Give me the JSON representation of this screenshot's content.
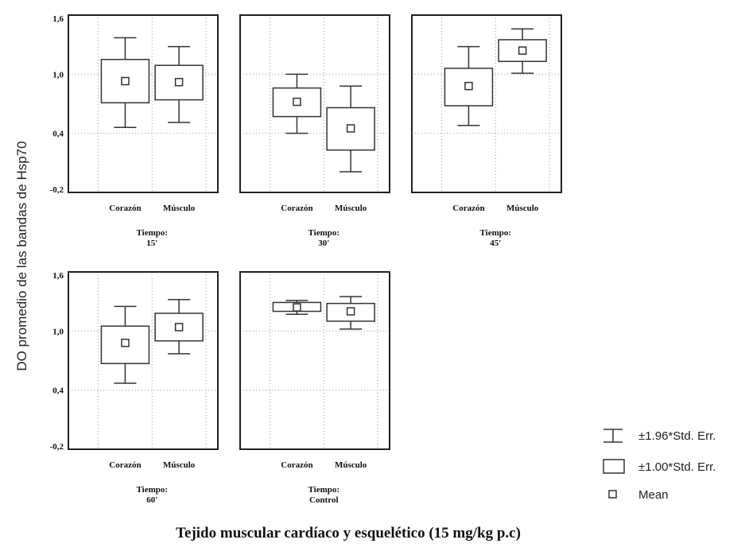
{
  "chart_data": {
    "type": "box",
    "ylabel": "DO promedio de las bandas de Hsp70",
    "xlabel": "Tejido muscular cardíaco y esquelético (15 mg/kg p.c)",
    "ylim": [
      -0.2,
      1.6
    ],
    "yticks": [
      "-0,2",
      "0,4",
      "1,0",
      "1,6"
    ],
    "ytick_values": [
      -0.2,
      0.4,
      1.0,
      1.6
    ],
    "categories": [
      "Corazón",
      "Músculo"
    ],
    "panel_group_label": "Tiempo:",
    "grid": true,
    "panels": [
      {
        "time": "15'",
        "boxes": [
          {
            "category": "Corazón",
            "mean": 0.93,
            "se_low": 0.71,
            "se_high": 1.15,
            "ci_low": 0.46,
            "ci_high": 1.37
          },
          {
            "category": "Músculo",
            "mean": 0.92,
            "se_low": 0.74,
            "se_high": 1.09,
            "ci_low": 0.51,
            "ci_high": 1.28
          }
        ]
      },
      {
        "time": "30'",
        "boxes": [
          {
            "category": "Corazón",
            "mean": 0.72,
            "se_low": 0.57,
            "se_high": 0.86,
            "ci_low": 0.4,
            "ci_high": 1.0
          },
          {
            "category": "Músculo",
            "mean": 0.45,
            "se_low": 0.23,
            "se_high": 0.66,
            "ci_low": 0.01,
            "ci_high": 0.88
          }
        ]
      },
      {
        "time": "45'",
        "boxes": [
          {
            "category": "Corazón",
            "mean": 0.88,
            "se_low": 0.68,
            "se_high": 1.06,
            "ci_low": 0.48,
            "ci_high": 1.28
          },
          {
            "category": "Músculo",
            "mean": 1.24,
            "se_low": 1.13,
            "se_high": 1.35,
            "ci_low": 1.01,
            "ci_high": 1.46
          }
        ]
      },
      {
        "time": "60'",
        "boxes": [
          {
            "category": "Corazón",
            "mean": 0.88,
            "se_low": 0.67,
            "se_high": 1.05,
            "ci_low": 0.47,
            "ci_high": 1.25
          },
          {
            "category": "Músculo",
            "mean": 1.04,
            "se_low": 0.9,
            "se_high": 1.18,
            "ci_low": 0.77,
            "ci_high": 1.32
          }
        ]
      },
      {
        "time": "Control",
        "boxes": [
          {
            "category": "Corazón",
            "mean": 1.24,
            "se_low": 1.2,
            "se_high": 1.29,
            "ci_low": 1.17,
            "ci_high": 1.31
          },
          {
            "category": "Músculo",
            "mean": 1.2,
            "se_low": 1.1,
            "se_high": 1.28,
            "ci_low": 1.02,
            "ci_high": 1.35
          }
        ]
      }
    ],
    "legend": {
      "position": "bottom-right",
      "items": [
        {
          "kind": "whisker",
          "label": "±1.96*Std. Err."
        },
        {
          "kind": "box",
          "label": "±1.00*Std. Err."
        },
        {
          "kind": "mean",
          "label": "Mean"
        }
      ]
    }
  }
}
